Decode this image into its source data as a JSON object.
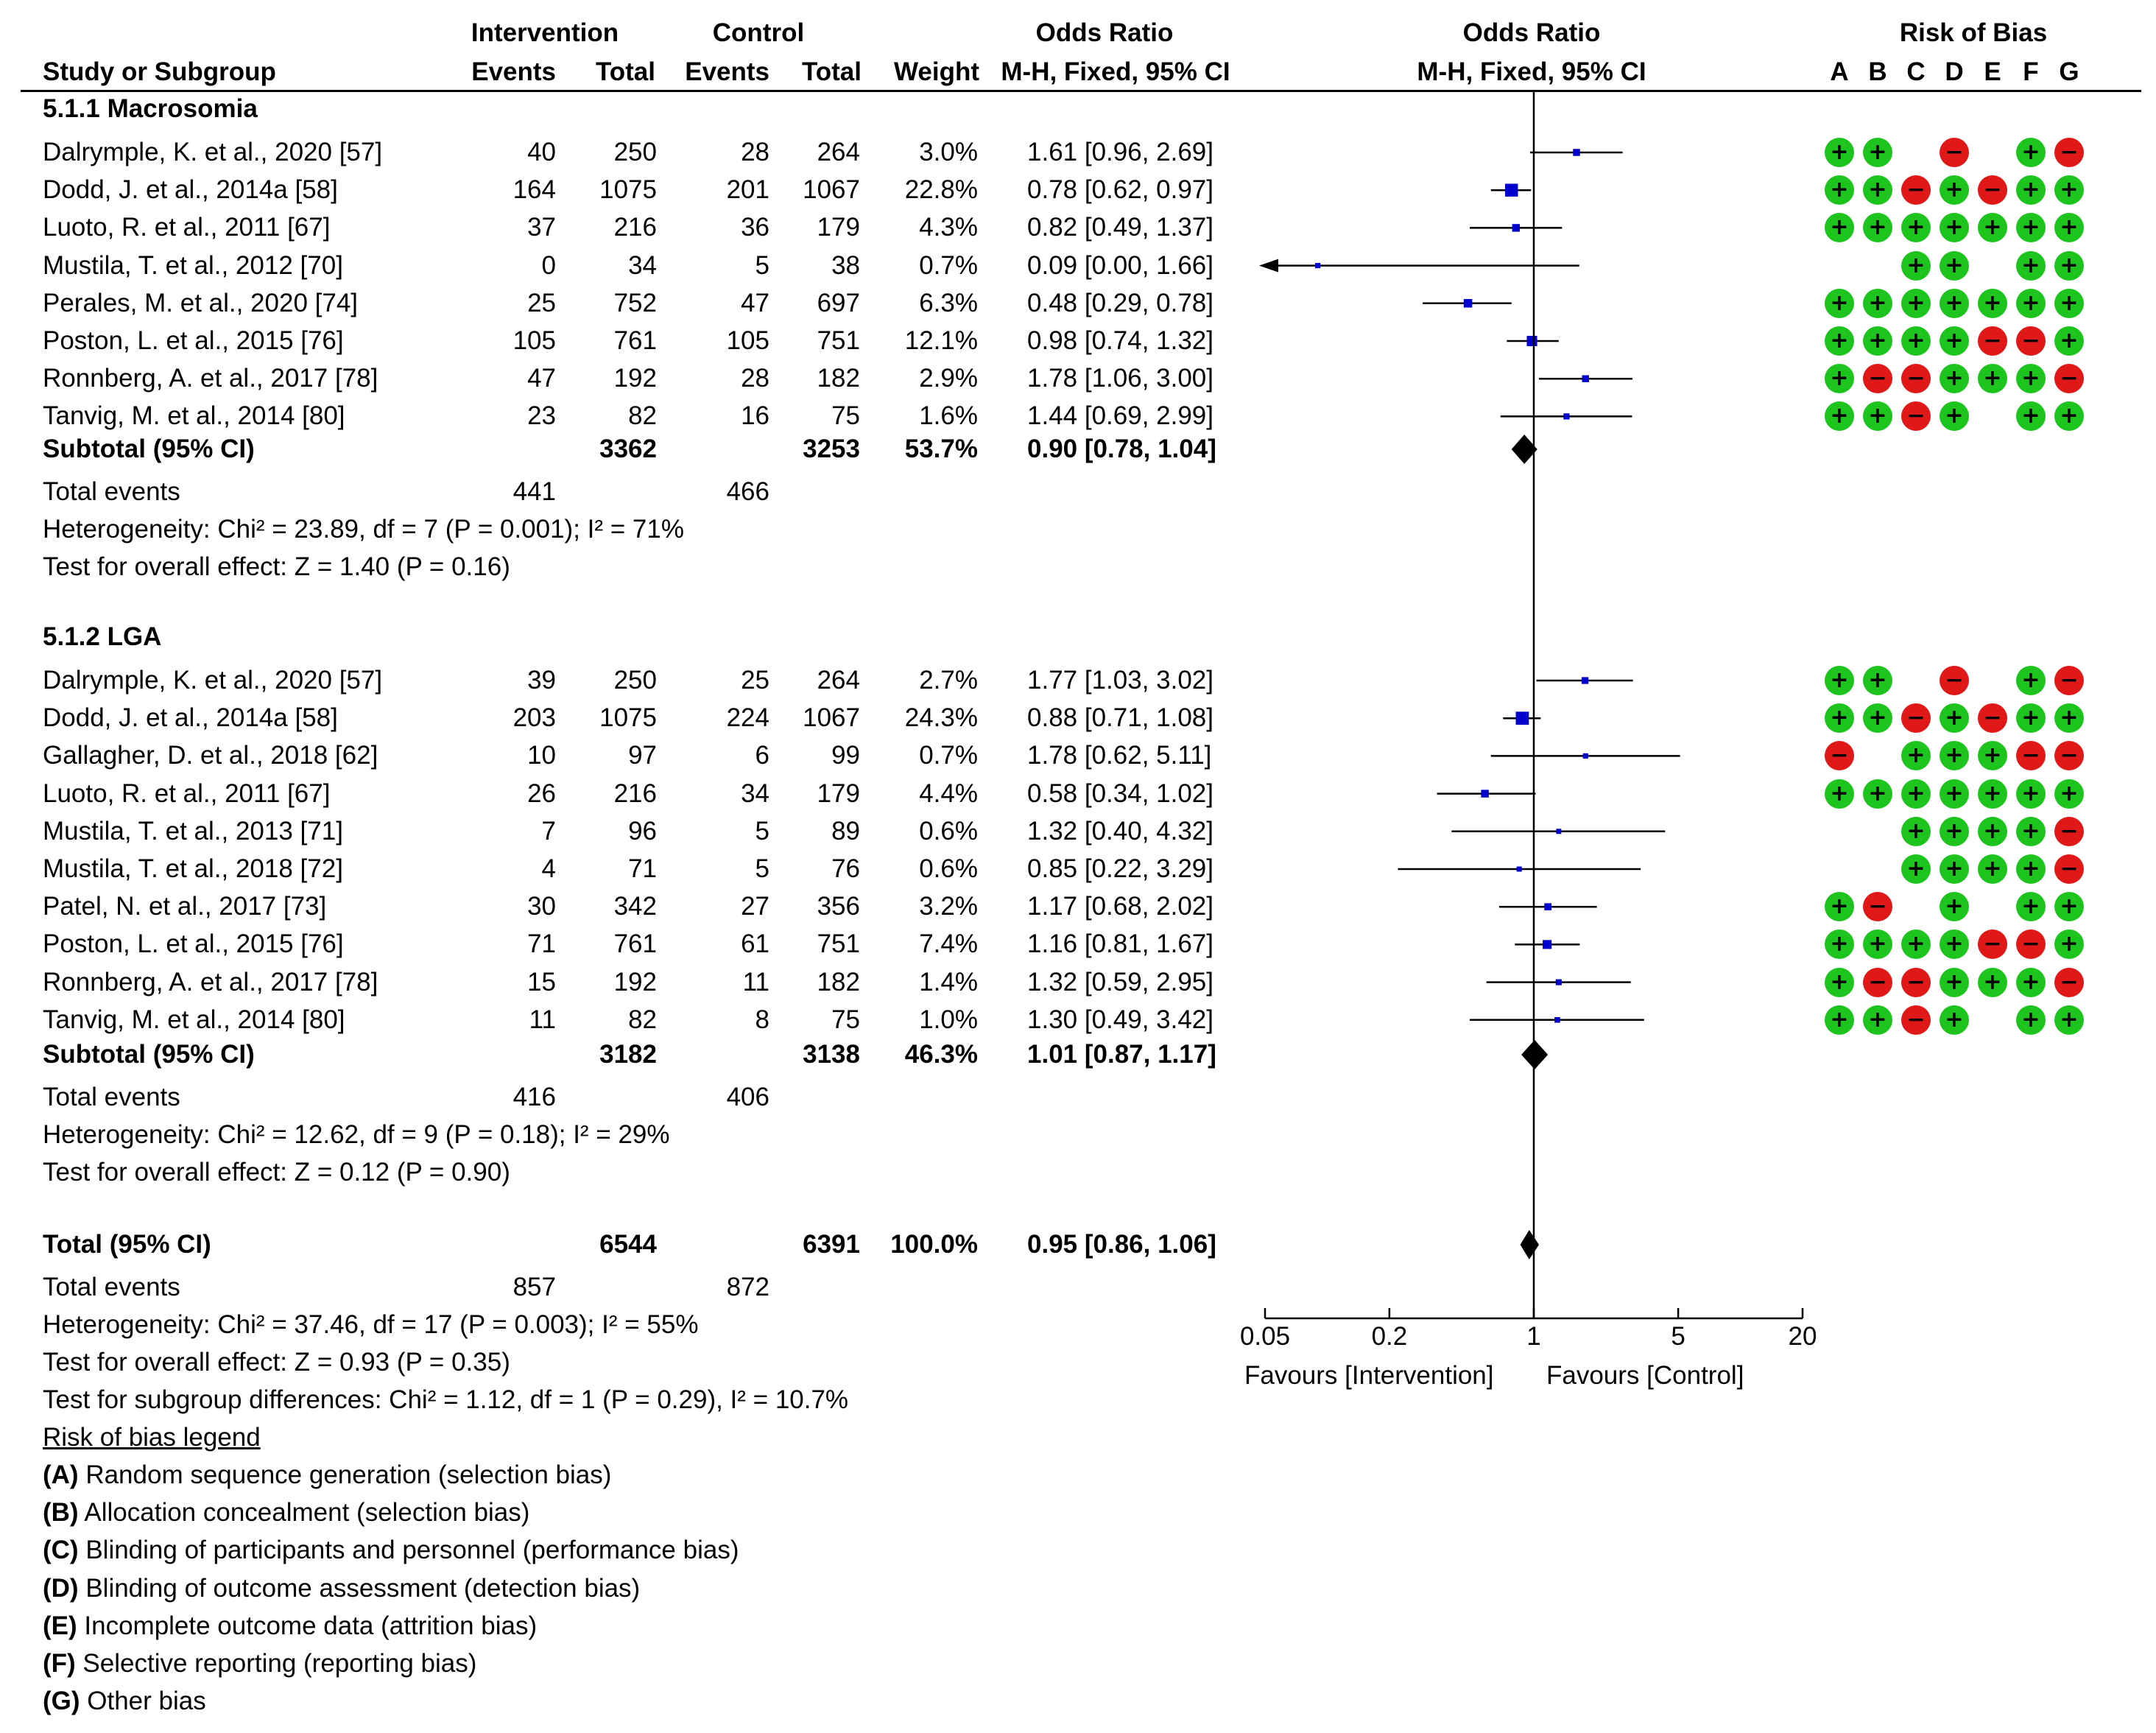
{
  "header": {
    "study_col": "Study or Subgroup",
    "intervention": "Intervention",
    "control": "Control",
    "events": "Events",
    "total": "Total",
    "weight": "Weight",
    "or_title": "Odds Ratio",
    "or_method": "M-H, Fixed, 95% CI",
    "rob_title": "Risk of Bias",
    "rob_letters": [
      "A",
      "B",
      "C",
      "D",
      "E",
      "F",
      "G"
    ]
  },
  "colors": {
    "plus": "#1ec41e",
    "minus": "#e01818",
    "square": "#0000cc",
    "line": "#000000"
  },
  "chart_data": {
    "type": "forest",
    "title": "Odds Ratio M-H, Fixed, 95% CI",
    "xscale": "log",
    "xlim": [
      0.05,
      20
    ],
    "ticks": [
      {
        "value": 0.05,
        "label": "0.05"
      },
      {
        "value": 0.2,
        "label": "0.2"
      },
      {
        "value": 1,
        "label": "1"
      },
      {
        "value": 5,
        "label": "5"
      },
      {
        "value": 20,
        "label": "20"
      }
    ],
    "favours_left": "Favours [Intervention]",
    "favours_right": "Favours [Control]",
    "subgroups": [
      {
        "title": "5.1.1 Macrosomia",
        "studies": [
          {
            "name": "Dalrymple, K. et al., 2020 [57]",
            "ie": "40",
            "it": "250",
            "ce": "28",
            "ct": "264",
            "weight": "3.0%",
            "or_text": "1.61 [0.96, 2.69]",
            "or": 1.61,
            "lo": 0.96,
            "hi": 2.69,
            "w": 3.0,
            "rob": [
              "+",
              "+",
              "",
              "-",
              "",
              "+",
              "-"
            ]
          },
          {
            "name": "Dodd, J. et al., 2014a [58]",
            "ie": "164",
            "it": "1075",
            "ce": "201",
            "ct": "1067",
            "weight": "22.8%",
            "or_text": "0.78 [0.62, 0.97]",
            "or": 0.78,
            "lo": 0.62,
            "hi": 0.97,
            "w": 22.8,
            "rob": [
              "+",
              "+",
              "-",
              "+",
              "-",
              "+",
              "+"
            ]
          },
          {
            "name": "Luoto, R. et al., 2011 [67]",
            "ie": "37",
            "it": "216",
            "ce": "36",
            "ct": "179",
            "weight": "4.3%",
            "or_text": "0.82 [0.49, 1.37]",
            "or": 0.82,
            "lo": 0.49,
            "hi": 1.37,
            "w": 4.3,
            "rob": [
              "+",
              "+",
              "+",
              "+",
              "+",
              "+",
              "+"
            ]
          },
          {
            "name": "Mustila, T. et al., 2012 [70]",
            "ie": "0",
            "it": "34",
            "ce": "5",
            "ct": "38",
            "weight": "0.7%",
            "or_text": "0.09 [0.00, 1.66]",
            "or": 0.09,
            "lo": 0.0001,
            "hi": 1.66,
            "w": 0.7,
            "rob": [
              "",
              "",
              "+",
              "+",
              "",
              "+",
              "+"
            ]
          },
          {
            "name": "Perales, M. et al., 2020 [74]",
            "ie": "25",
            "it": "752",
            "ce": "47",
            "ct": "697",
            "weight": "6.3%",
            "or_text": "0.48 [0.29, 0.78]",
            "or": 0.48,
            "lo": 0.29,
            "hi": 0.78,
            "w": 6.3,
            "rob": [
              "+",
              "+",
              "+",
              "+",
              "+",
              "+",
              "+"
            ]
          },
          {
            "name": "Poston, L. et al., 2015 [76]",
            "ie": "105",
            "it": "761",
            "ce": "105",
            "ct": "751",
            "weight": "12.1%",
            "or_text": "0.98 [0.74, 1.32]",
            "or": 0.98,
            "lo": 0.74,
            "hi": 1.32,
            "w": 12.1,
            "rob": [
              "+",
              "+",
              "+",
              "+",
              "-",
              "-",
              "+"
            ]
          },
          {
            "name": "Ronnberg, A. et al., 2017 [78]",
            "ie": "47",
            "it": "192",
            "ce": "28",
            "ct": "182",
            "weight": "2.9%",
            "or_text": "1.78 [1.06, 3.00]",
            "or": 1.78,
            "lo": 1.06,
            "hi": 3.0,
            "w": 2.9,
            "rob": [
              "+",
              "-",
              "-",
              "+",
              "+",
              "+",
              "-"
            ]
          },
          {
            "name": "Tanvig, M. et al., 2014 [80]",
            "ie": "23",
            "it": "82",
            "ce": "16",
            "ct": "75",
            "weight": "1.6%",
            "or_text": "1.44 [0.69, 2.99]",
            "or": 1.44,
            "lo": 0.69,
            "hi": 2.99,
            "w": 1.6,
            "rob": [
              "+",
              "+",
              "-",
              "+",
              "",
              "+",
              "+"
            ]
          }
        ],
        "subtotal": {
          "label": "Subtotal (95% CI)",
          "it": "3362",
          "ct": "3253",
          "weight": "53.7%",
          "or_text": "0.90 [0.78, 1.04]",
          "or": 0.9,
          "lo": 0.78,
          "hi": 1.04
        },
        "total_events": {
          "label": "Total events",
          "ie": "441",
          "ce": "466"
        },
        "heterogeneity": "Heterogeneity: Chi² = 23.89, df = 7 (P = 0.001); I² = 71%",
        "overall": "Test for overall effect: Z = 1.40 (P = 0.16)"
      },
      {
        "title": "5.1.2 LGA",
        "studies": [
          {
            "name": "Dalrymple, K. et al., 2020 [57]",
            "ie": "39",
            "it": "250",
            "ce": "25",
            "ct": "264",
            "weight": "2.7%",
            "or_text": "1.77 [1.03, 3.02]",
            "or": 1.77,
            "lo": 1.03,
            "hi": 3.02,
            "w": 2.7,
            "rob": [
              "+",
              "+",
              "",
              "-",
              "",
              "+",
              "-"
            ]
          },
          {
            "name": "Dodd, J. et al., 2014a [58]",
            "ie": "203",
            "it": "1075",
            "ce": "224",
            "ct": "1067",
            "weight": "24.3%",
            "or_text": "0.88 [0.71, 1.08]",
            "or": 0.88,
            "lo": 0.71,
            "hi": 1.08,
            "w": 24.3,
            "rob": [
              "+",
              "+",
              "-",
              "+",
              "-",
              "+",
              "+"
            ]
          },
          {
            "name": "Gallagher, D. et al., 2018 [62]",
            "ie": "10",
            "it": "97",
            "ce": "6",
            "ct": "99",
            "weight": "0.7%",
            "or_text": "1.78 [0.62, 5.11]",
            "or": 1.78,
            "lo": 0.62,
            "hi": 5.11,
            "w": 0.7,
            "rob": [
              "-",
              "",
              "+",
              "+",
              "+",
              "-",
              "-"
            ]
          },
          {
            "name": "Luoto, R. et al., 2011 [67]",
            "ie": "26",
            "it": "216",
            "ce": "34",
            "ct": "179",
            "weight": "4.4%",
            "or_text": "0.58 [0.34, 1.02]",
            "or": 0.58,
            "lo": 0.34,
            "hi": 1.02,
            "w": 4.4,
            "rob": [
              "+",
              "+",
              "+",
              "+",
              "+",
              "+",
              "+"
            ]
          },
          {
            "name": "Mustila, T. et al., 2013 [71]",
            "ie": "7",
            "it": "96",
            "ce": "5",
            "ct": "89",
            "weight": "0.6%",
            "or_text": "1.32 [0.40, 4.32]",
            "or": 1.32,
            "lo": 0.4,
            "hi": 4.32,
            "w": 0.6,
            "rob": [
              "",
              "",
              "+",
              "+",
              "+",
              "+",
              "-"
            ]
          },
          {
            "name": "Mustila, T. et al., 2018 [72]",
            "ie": "4",
            "it": "71",
            "ce": "5",
            "ct": "76",
            "weight": "0.6%",
            "or_text": "0.85 [0.22, 3.29]",
            "or": 0.85,
            "lo": 0.22,
            "hi": 3.29,
            "w": 0.6,
            "rob": [
              "",
              "",
              "+",
              "+",
              "+",
              "+",
              "-"
            ]
          },
          {
            "name": "Patel, N. et al., 2017 [73]",
            "ie": "30",
            "it": "342",
            "ce": "27",
            "ct": "356",
            "weight": "3.2%",
            "or_text": "1.17 [0.68, 2.02]",
            "or": 1.17,
            "lo": 0.68,
            "hi": 2.02,
            "w": 3.2,
            "rob": [
              "+",
              "-",
              "",
              "+",
              "",
              "+",
              "+"
            ]
          },
          {
            "name": "Poston, L. et al., 2015 [76]",
            "ie": "71",
            "it": "761",
            "ce": "61",
            "ct": "751",
            "weight": "7.4%",
            "or_text": "1.16 [0.81, 1.67]",
            "or": 1.16,
            "lo": 0.81,
            "hi": 1.67,
            "w": 7.4,
            "rob": [
              "+",
              "+",
              "+",
              "+",
              "-",
              "-",
              "+"
            ]
          },
          {
            "name": "Ronnberg, A. et al., 2017 [78]",
            "ie": "15",
            "it": "192",
            "ce": "11",
            "ct": "182",
            "weight": "1.4%",
            "or_text": "1.32 [0.59, 2.95]",
            "or": 1.32,
            "lo": 0.59,
            "hi": 2.95,
            "w": 1.4,
            "rob": [
              "+",
              "-",
              "-",
              "+",
              "+",
              "+",
              "-"
            ]
          },
          {
            "name": "Tanvig, M. et al., 2014 [80]",
            "ie": "11",
            "it": "82",
            "ce": "8",
            "ct": "75",
            "weight": "1.0%",
            "or_text": "1.30 [0.49, 3.42]",
            "or": 1.3,
            "lo": 0.49,
            "hi": 3.42,
            "w": 1.0,
            "rob": [
              "+",
              "+",
              "-",
              "+",
              "",
              "+",
              "+"
            ]
          }
        ],
        "subtotal": {
          "label": "Subtotal (95% CI)",
          "it": "3182",
          "ct": "3138",
          "weight": "46.3%",
          "or_text": "1.01 [0.87, 1.17]",
          "or": 1.01,
          "lo": 0.87,
          "hi": 1.17
        },
        "total_events": {
          "label": "Total events",
          "ie": "416",
          "ce": "406"
        },
        "heterogeneity": "Heterogeneity: Chi² = 12.62, df = 9 (P = 0.18); I² = 29%",
        "overall": "Test for overall effect: Z = 0.12 (P = 0.90)"
      }
    ],
    "total": {
      "label": "Total (95% CI)",
      "it": "6544",
      "ct": "6391",
      "weight": "100.0%",
      "or_text": "0.95 [0.86, 1.06]",
      "or": 0.95,
      "lo": 0.86,
      "hi": 1.06
    },
    "total_events": {
      "label": "Total events",
      "ie": "857",
      "ce": "872"
    },
    "heterogeneity": "Heterogeneity: Chi² = 37.46, df = 17 (P = 0.003); I² = 55%",
    "overall": "Test for overall effect: Z = 0.93 (P = 0.35)",
    "subgroup_diff": "Test for subgroup differences: Chi² = 1.12, df = 1 (P = 0.29), I² = 10.7%"
  },
  "legend": {
    "title": "Risk of bias legend",
    "items": [
      {
        "key": "(A)",
        "text": " Random sequence generation (selection bias)"
      },
      {
        "key": "(B)",
        "text": " Allocation concealment (selection bias)"
      },
      {
        "key": "(C)",
        "text": " Blinding of participants and personnel (performance bias)"
      },
      {
        "key": "(D)",
        "text": " Blinding of outcome assessment (detection bias)"
      },
      {
        "key": "(E)",
        "text": " Incomplete outcome data (attrition bias)"
      },
      {
        "key": "(F)",
        "text": " Selective reporting (reporting bias)"
      },
      {
        "key": "(G)",
        "text": " Other bias"
      }
    ]
  }
}
